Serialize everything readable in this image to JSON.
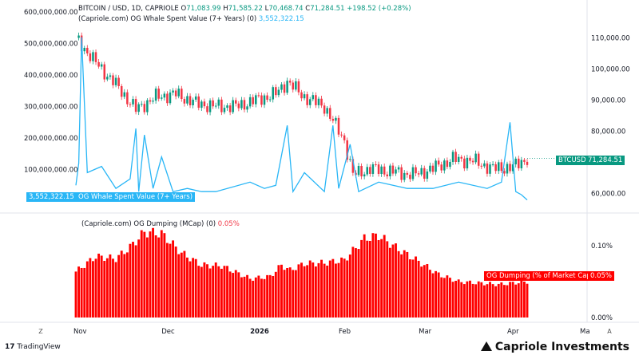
{
  "header": {
    "line1_prefix": "BITCOIN / USD, 1D, CAPRIOLE",
    "open_label": "O",
    "open": "71,083.99",
    "high_label": "H",
    "high": "71,585.22",
    "low_label": "L",
    "low": "70,468.74",
    "close_label": "C",
    "close": "71,284.51",
    "change": "+198.52 (+0.28%)",
    "line2_label": "(Capriole.com) OG Whale Spent Value (7+ Years) (0)",
    "line2_value": "3,552,322.15",
    "line3_label": "(Capriole.com) OG Dumping (MCap) (0)",
    "line3_value": "0.05%"
  },
  "tags": {
    "btc_symbol": "BTCUSD",
    "btc_price": "71,284.51",
    "whale_value": "3,552,322.15",
    "whale_name": "OG Whale Spent Value (7+ Years)",
    "dump_name": "OG Dumping (% of Market Cap)",
    "dump_value": "0.05%"
  },
  "axes": {
    "left_ticks": [
      "600,000,000.00",
      "500,000,000.00",
      "400,000,000.00",
      "300,000,000.00",
      "200,000,000.00",
      "100,000,000.00"
    ],
    "right_ticks": [
      "110,000.00",
      "100,000.00",
      "90,000.00",
      "80,000.00",
      "70,000.00",
      "60,000.00"
    ],
    "lower_right_ticks": [
      "0.10%",
      "0.05%",
      "0.00%"
    ],
    "x_ticks": [
      "Nov",
      "Dec",
      "2026",
      "Feb",
      "Mar",
      "Apr",
      "Ma"
    ]
  },
  "buttons": {
    "zoom_left": "Z",
    "auto": "A"
  },
  "brand": {
    "tradingview": "TradingView",
    "capriole": "Capriole Investments"
  },
  "colors": {
    "up": "#089981",
    "down": "#f23645",
    "whale": "#29b6f6",
    "dumping": "#ff0000"
  },
  "chart_data": [
    {
      "type": "candlestick",
      "series": [
        {
          "name": "BTCUSD"
        }
      ],
      "y_axis_right_range": [
        55000,
        115000
      ],
      "ohlc_last": {
        "open": 71083.99,
        "high": 71585.22,
        "low": 70468.74,
        "close": 71284.51
      },
      "close_path_x_dates": [
        "2025-11-01",
        "2025-11-08",
        "2025-11-15",
        "2025-11-22",
        "2025-11-29",
        "2025-12-06",
        "2025-12-13",
        "2025-12-20",
        "2025-12-27",
        "2026-01-03",
        "2026-01-10",
        "2026-01-14",
        "2026-01-20",
        "2026-01-27",
        "2026-02-03",
        "2026-02-06",
        "2026-02-12",
        "2026-02-20",
        "2026-02-27",
        "2026-03-06",
        "2026-03-13",
        "2026-03-20",
        "2026-03-27",
        "2026-04-03",
        "2026-04-08"
      ],
      "close_path_y": [
        110000,
        102000,
        95000,
        87000,
        91000,
        92000,
        89000,
        88000,
        88000,
        90000,
        92000,
        96000,
        91000,
        88000,
        77000,
        66000,
        68000,
        67000,
        66000,
        68000,
        71000,
        70500,
        68000,
        68500,
        71284.51
      ]
    },
    {
      "type": "line",
      "series": [
        {
          "name": "OG Whale Spent Value (7+ Years)"
        }
      ],
      "y_axis_left_range": [
        0,
        600000000
      ],
      "x_dates": [
        "2025-11-01",
        "2025-11-02",
        "2025-11-03",
        "2025-11-05",
        "2025-11-10",
        "2025-11-15",
        "2025-11-20",
        "2025-11-22",
        "2025-11-23",
        "2025-11-25",
        "2025-11-28",
        "2025-12-01",
        "2025-12-05",
        "2025-12-10",
        "2025-12-15",
        "2025-12-20",
        "2026-01-01",
        "2026-01-06",
        "2026-01-10",
        "2026-01-14",
        "2026-01-16",
        "2026-01-20",
        "2026-01-27",
        "2026-01-30",
        "2026-02-01",
        "2026-02-05",
        "2026-02-08",
        "2026-02-15",
        "2026-02-25",
        "2026-03-06",
        "2026-03-15",
        "2026-03-25",
        "2026-03-30",
        "2026-04-02",
        "2026-04-04",
        "2026-04-06",
        "2026-04-08"
      ],
      "values": [
        50000000,
        120000000,
        520000000,
        90000000,
        110000000,
        40000000,
        70000000,
        230000000,
        30000000,
        210000000,
        40000000,
        140000000,
        30000000,
        40000000,
        30000000,
        30000000,
        60000000,
        40000000,
        50000000,
        240000000,
        30000000,
        90000000,
        30000000,
        240000000,
        40000000,
        180000000,
        30000000,
        60000000,
        40000000,
        40000000,
        60000000,
        40000000,
        60000000,
        250000000,
        30000000,
        20000000,
        3552322.15
      ]
    },
    {
      "type": "bar",
      "series": [
        {
          "name": "OG Dumping (% of Market Cap)"
        }
      ],
      "y_axis_range_percent": [
        0,
        0.12
      ],
      "x_dates": [
        "2025-11-01",
        "2025-11-08",
        "2025-11-15",
        "2025-11-20",
        "2025-11-25",
        "2025-12-01",
        "2025-12-08",
        "2025-12-15",
        "2025-12-22",
        "2026-01-01",
        "2026-01-08",
        "2026-01-12",
        "2026-01-15",
        "2026-01-20",
        "2026-01-27",
        "2026-02-03",
        "2026-02-10",
        "2026-02-15",
        "2026-02-22",
        "2026-03-01",
        "2026-03-08",
        "2026-03-15",
        "2026-03-22",
        "2026-03-29",
        "2026-04-08"
      ],
      "values": [
        0.064,
        0.085,
        0.082,
        0.098,
        0.119,
        0.117,
        0.09,
        0.073,
        0.072,
        0.054,
        0.057,
        0.073,
        0.066,
        0.075,
        0.076,
        0.08,
        0.11,
        0.114,
        0.095,
        0.078,
        0.06,
        0.05,
        0.048,
        0.046,
        0.05
      ]
    }
  ]
}
